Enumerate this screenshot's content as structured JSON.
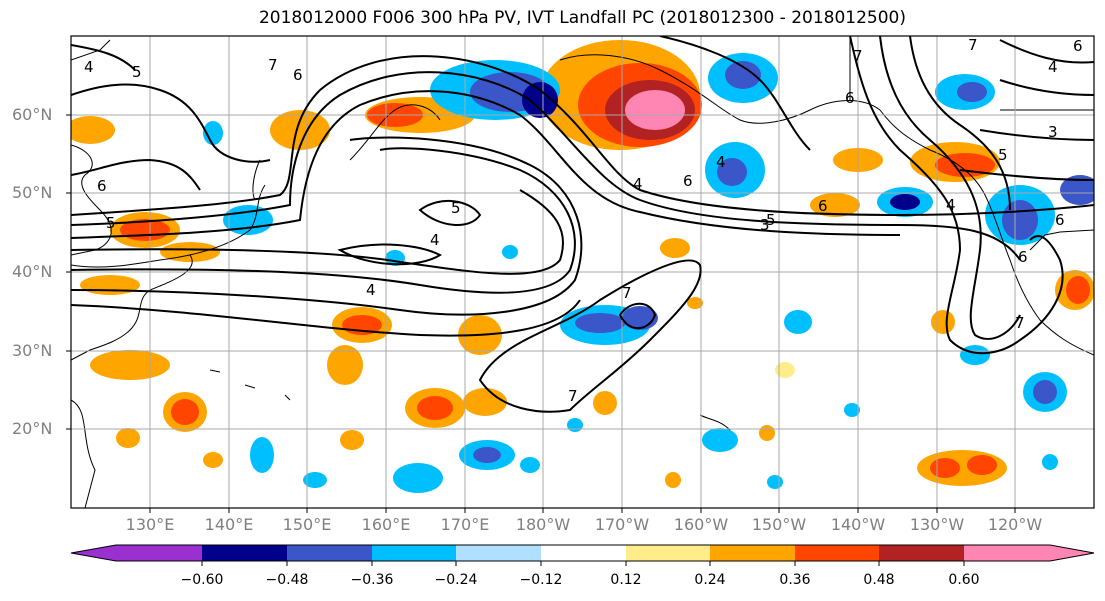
{
  "title": "2018012000 F006 300 hPa PV, IVT Landfall PC (2018012300 - 2018012500)",
  "lat_labels": [
    "60°N",
    "50°N",
    "40°N",
    "30°N",
    "20°N"
  ],
  "lon_labels": [
    "130°E",
    "140°E",
    "150°E",
    "160°E",
    "170°E",
    "180°W",
    "170°W",
    "160°W",
    "150°W",
    "140°W",
    "130°W",
    "120°W"
  ],
  "colorbar": {
    "ticks": [
      "−0.60",
      "−0.48",
      "−0.36",
      "−0.24",
      "−0.12",
      "0.12",
      "0.24",
      "0.36",
      "0.48",
      "0.60"
    ],
    "colors": [
      "#9b30d0",
      "#00008b",
      "#3a56c8",
      "#00bfff",
      "#b0e0ff",
      "#ffffff",
      "#ffec8b",
      "#ffa500",
      "#ff4500",
      "#b22222",
      "#ff85b3"
    ]
  },
  "contour_labels": [
    "4",
    "5",
    "6",
    "7",
    "6",
    "5",
    "4",
    "7",
    "7",
    "6",
    "6",
    "5",
    "4",
    "3",
    "6",
    "5",
    "4",
    "4",
    "4",
    "6",
    "6",
    "7",
    "7",
    "4",
    "3",
    "5",
    "6",
    "7"
  ],
  "colors": {
    "land_outline": "#000000",
    "grid": "#b0b0b0",
    "frame": "#000000"
  }
}
